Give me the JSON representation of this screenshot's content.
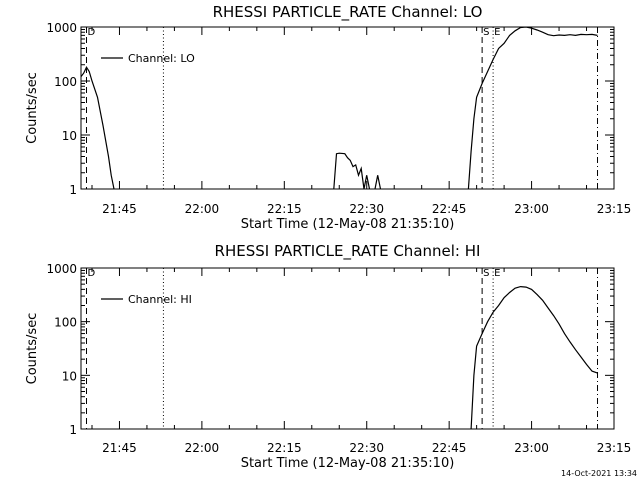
{
  "chart_data": [
    {
      "type": "line",
      "title": "RHESSI PARTICLE_RATE Channel: LO",
      "xlabel": "Start Time (12-May-08 21:35:10)",
      "ylabel": "Counts/sec",
      "y_scale": "log",
      "ylim": [
        1,
        1000
      ],
      "xlim": [
        "21:38",
        "23:15"
      ],
      "x_ticks": [
        "21:45",
        "22:00",
        "22:15",
        "22:30",
        "22:45",
        "23:00",
        "23:15"
      ],
      "y_ticks": [
        "1",
        "10",
        "100",
        "1000"
      ],
      "legend": {
        "position": "top-left",
        "entries": [
          "Channel: LO"
        ]
      },
      "markers": [
        {
          "label": "D",
          "time": "21:39",
          "style": "dashed"
        },
        {
          "label": "",
          "time": "21:53",
          "style": "dotted"
        },
        {
          "label": "S",
          "time": "22:51",
          "style": "dashed"
        },
        {
          "label": "E",
          "time": "22:53",
          "style": "dotted"
        },
        {
          "label": "",
          "time": "23:12",
          "style": "dashdot"
        }
      ],
      "series": [
        {
          "name": "Channel: LO",
          "segments": [
            [
              [
                "21:38",
                120
              ],
              [
                "21:38:30",
                140
              ],
              [
                "21:39",
                180
              ],
              [
                "21:39:30",
                150
              ],
              [
                "21:40",
                100
              ],
              [
                "21:41",
                50
              ],
              [
                "21:42",
                15
              ],
              [
                "21:43",
                4
              ],
              [
                "21:43:30",
                1.8
              ],
              [
                "21:44",
                1
              ]
            ],
            [
              [
                "22:24",
                1
              ],
              [
                "22:24:30",
                4.5
              ],
              [
                "22:25",
                4.6
              ],
              [
                "22:26",
                4.5
              ],
              [
                "22:26:30",
                3.8
              ],
              [
                "22:27",
                3.4
              ],
              [
                "22:27:30",
                2.6
              ],
              [
                "22:28",
                2.8
              ],
              [
                "22:28:30",
                1.8
              ],
              [
                "22:29",
                2.4
              ],
              [
                "22:29:30",
                1
              ],
              [
                "22:30",
                1.8
              ],
              [
                "22:30:30",
                1
              ]
            ],
            [
              [
                "22:31:30",
                1
              ],
              [
                "22:32",
                1.8
              ],
              [
                "22:32:30",
                1
              ]
            ],
            [
              [
                "22:48:30",
                1
              ],
              [
                "22:49",
                5
              ],
              [
                "22:49:30",
                20
              ],
              [
                "22:50",
                50
              ],
              [
                "22:51",
                90
              ],
              [
                "22:52",
                150
              ],
              [
                "22:53",
                250
              ],
              [
                "22:54",
                400
              ],
              [
                "22:55",
                500
              ],
              [
                "22:56",
                700
              ],
              [
                "22:57",
                850
              ],
              [
                "22:58",
                980
              ],
              [
                "22:59",
                1000
              ],
              [
                "23:00",
                950
              ],
              [
                "23:01",
                880
              ],
              [
                "23:02",
                800
              ],
              [
                "23:03",
                720
              ],
              [
                "23:04",
                690
              ],
              [
                "23:05",
                710
              ],
              [
                "23:06",
                700
              ],
              [
                "23:07",
                720
              ],
              [
                "23:08",
                700
              ],
              [
                "23:09",
                730
              ],
              [
                "23:10",
                720
              ],
              [
                "23:11",
                730
              ],
              [
                "23:12",
                700
              ]
            ]
          ]
        }
      ]
    },
    {
      "type": "line",
      "title": "RHESSI PARTICLE_RATE Channel: HI",
      "xlabel": "Start Time (12-May-08 21:35:10)",
      "ylabel": "Counts/sec",
      "y_scale": "log",
      "ylim": [
        1,
        1000
      ],
      "xlim": [
        "21:38",
        "23:15"
      ],
      "x_ticks": [
        "21:45",
        "22:00",
        "22:15",
        "22:30",
        "22:45",
        "23:00",
        "23:15"
      ],
      "y_ticks": [
        "1",
        "10",
        "100",
        "1000"
      ],
      "legend": {
        "position": "top-left",
        "entries": [
          "Channel: HI"
        ]
      },
      "markers": [
        {
          "label": "D",
          "time": "21:39",
          "style": "dashed"
        },
        {
          "label": "",
          "time": "21:53",
          "style": "dotted"
        },
        {
          "label": "S",
          "time": "22:51",
          "style": "dashed"
        },
        {
          "label": "E",
          "time": "22:53",
          "style": "dotted"
        },
        {
          "label": "",
          "time": "23:12",
          "style": "dashdot"
        }
      ],
      "series": [
        {
          "name": "Channel: HI",
          "segments": [
            [
              [
                "22:49",
                1
              ],
              [
                "22:49:30",
                10
              ],
              [
                "22:50",
                35
              ],
              [
                "22:51",
                60
              ],
              [
                "22:52",
                100
              ],
              [
                "22:53",
                150
              ],
              [
                "22:54",
                200
              ],
              [
                "22:55",
                280
              ],
              [
                "22:56",
                350
              ],
              [
                "22:57",
                420
              ],
              [
                "22:58",
                450
              ],
              [
                "22:59",
                440
              ],
              [
                "23:00",
                400
              ],
              [
                "23:01",
                320
              ],
              [
                "23:02",
                250
              ],
              [
                "23:03",
                180
              ],
              [
                "23:04",
                130
              ],
              [
                "23:05",
                90
              ],
              [
                "23:06",
                60
              ],
              [
                "23:07",
                42
              ],
              [
                "23:08",
                30
              ],
              [
                "23:09",
                22
              ],
              [
                "23:10",
                16
              ],
              [
                "23:11",
                12
              ],
              [
                "23:12",
                11
              ]
            ]
          ]
        }
      ]
    }
  ],
  "footer": {
    "timestamp": "14-Oct-2021 13:34"
  }
}
